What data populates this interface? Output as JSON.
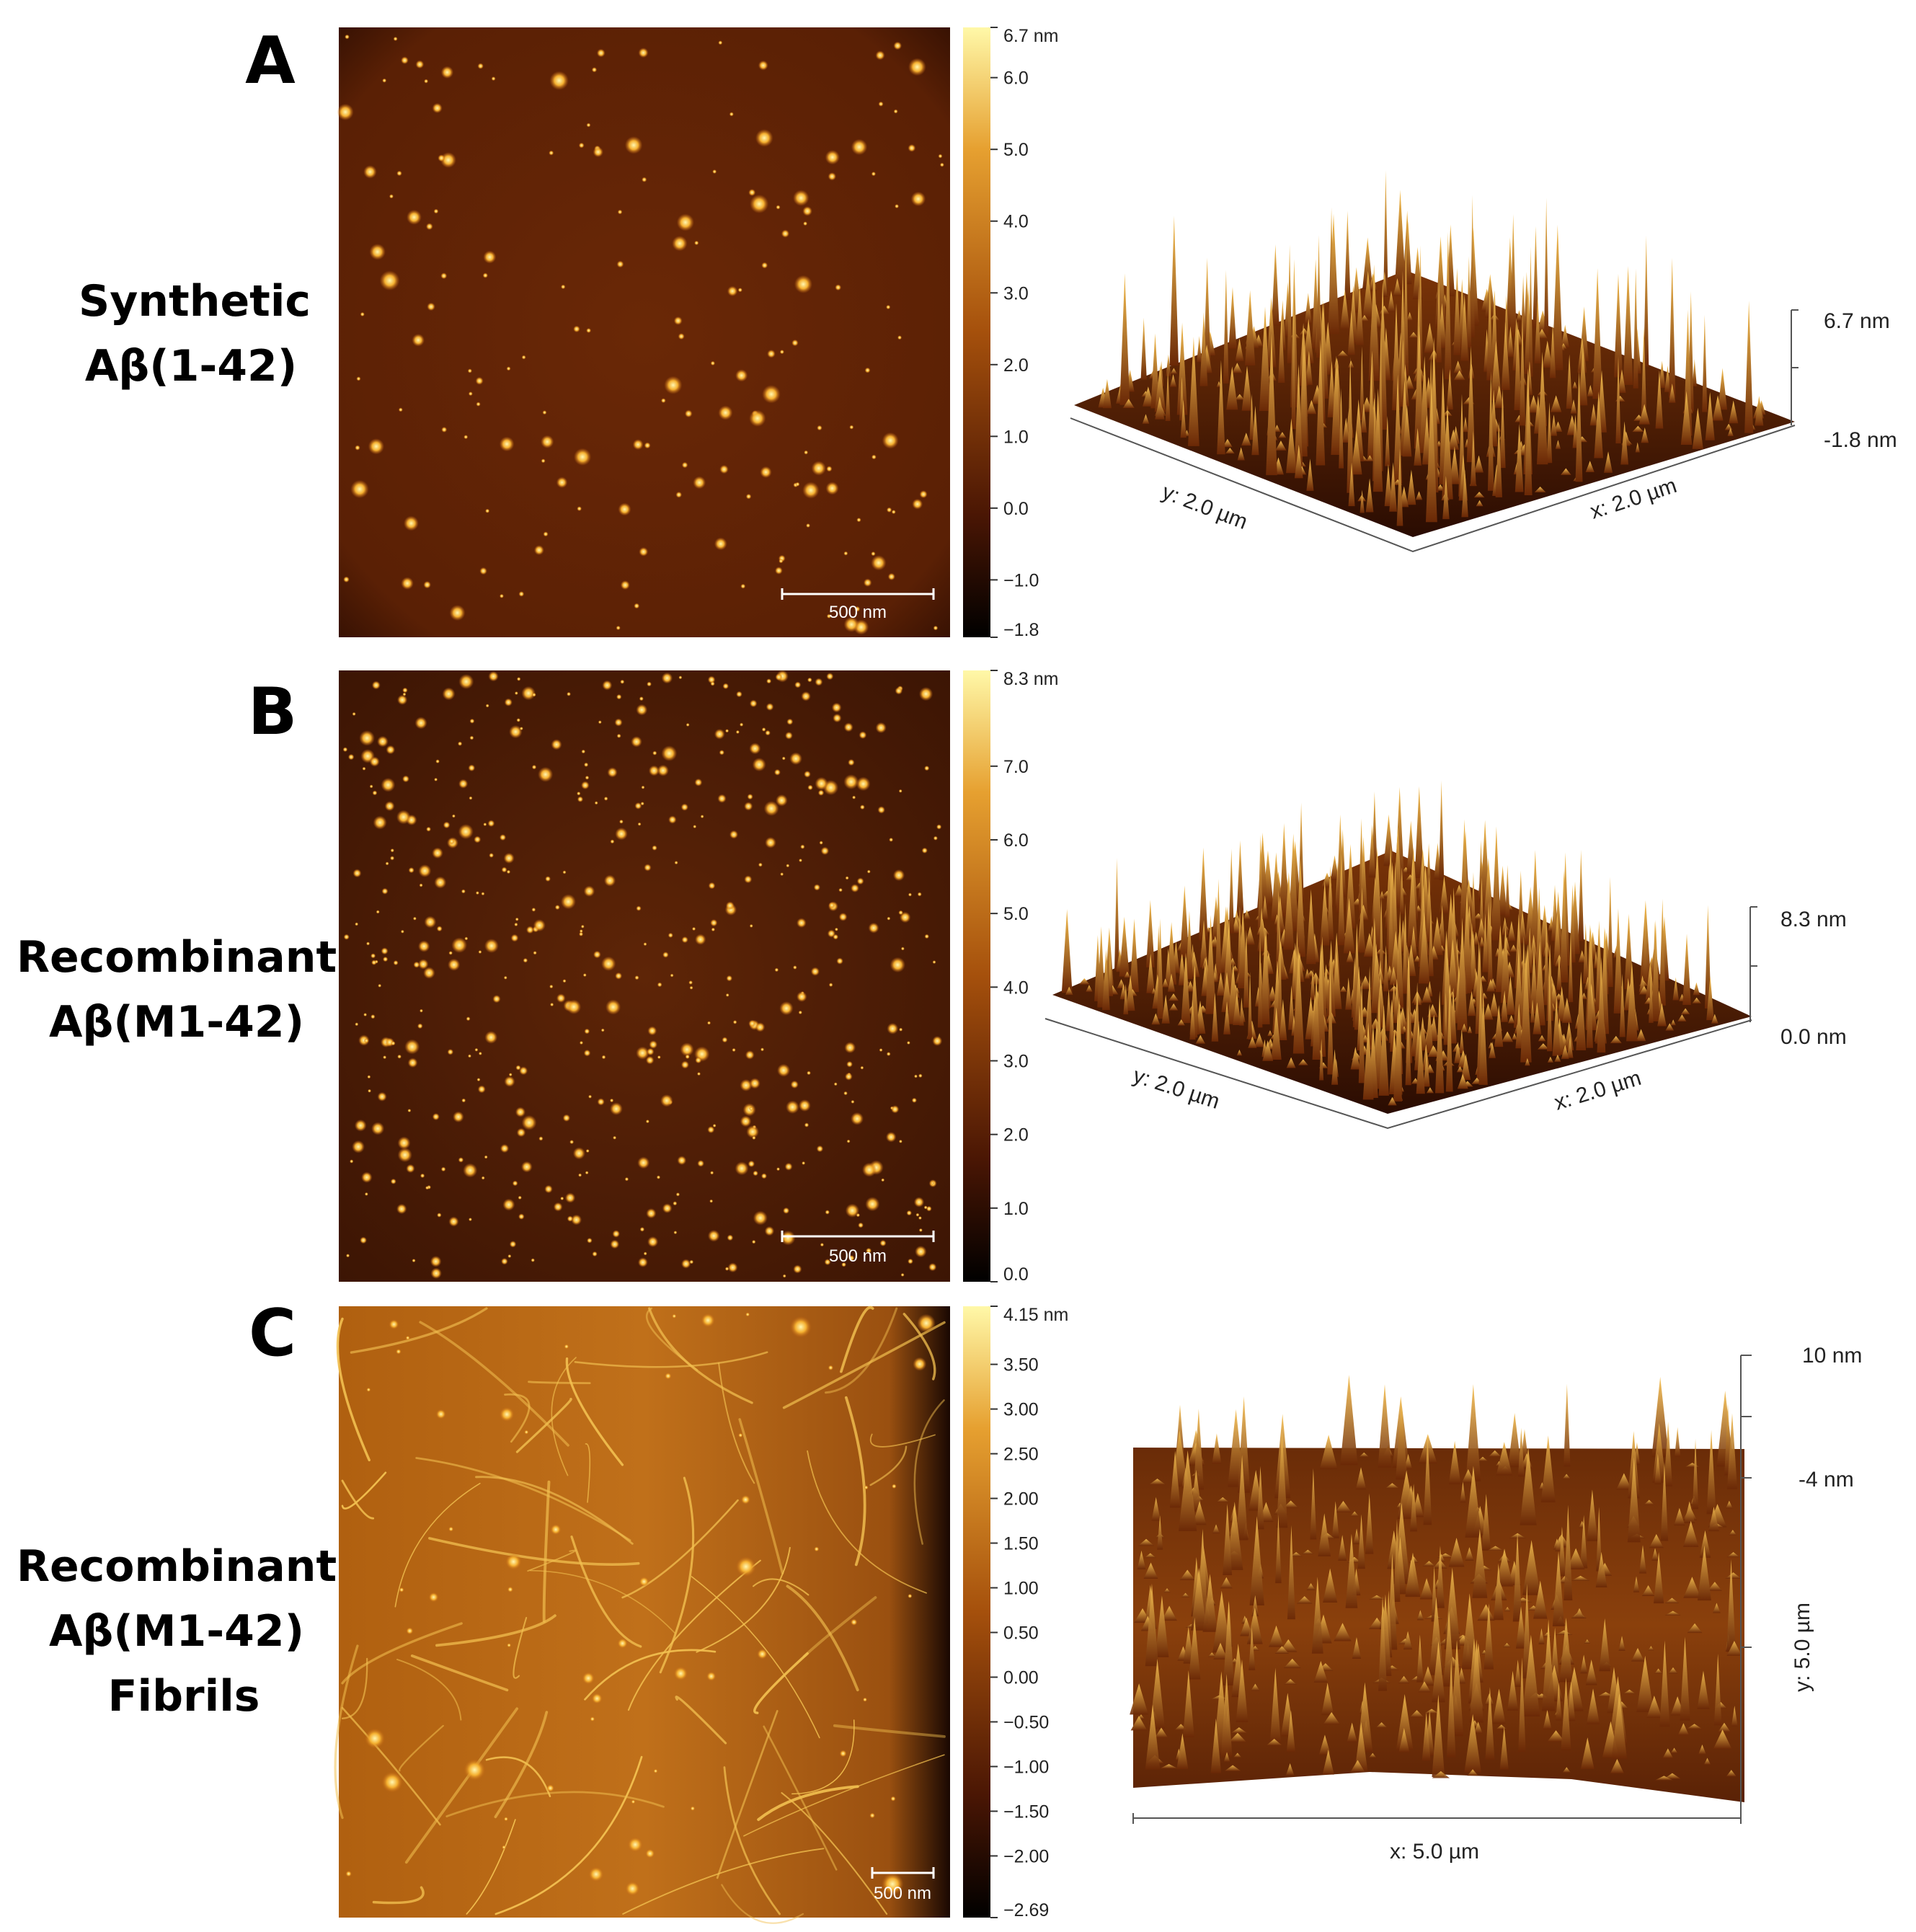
{
  "panels": [
    {
      "letter": "A",
      "label_lines": [
        "Synthetic",
        "Aβ(1-42)"
      ],
      "colorbar": {
        "ticks": [
          "6.7 nm",
          "6.0",
          "5.0",
          "4.0",
          "3.0",
          "2.0",
          "1.0",
          "0.0",
          "−1.0",
          "−1.8"
        ],
        "values": [
          6.7,
          6.0,
          5.0,
          4.0,
          3.0,
          2.0,
          1.0,
          0.0,
          -1.0,
          -1.8
        ],
        "range": [
          -1.8,
          6.7
        ]
      },
      "scale_bar": "500 nm",
      "view3d": {
        "z_labels": [
          "6.7 nm",
          "-1.8 nm"
        ],
        "y_label": "y: 2.0 µm",
        "x_label": "x: 2.0 µm"
      }
    },
    {
      "letter": "B",
      "label_lines": [
        "Recombinant",
        "Aβ(M1-42)"
      ],
      "colorbar": {
        "ticks": [
          "8.3 nm",
          "7.0",
          "6.0",
          "5.0",
          "4.0",
          "3.0",
          "2.0",
          "1.0",
          "0.0"
        ],
        "values": [
          8.3,
          7.0,
          6.0,
          5.0,
          4.0,
          3.0,
          2.0,
          1.0,
          0.0
        ],
        "range": [
          0.0,
          8.3
        ]
      },
      "scale_bar": "500 nm",
      "view3d": {
        "z_labels": [
          "8.3 nm",
          "0.0 nm"
        ],
        "y_label": "y: 2.0 µm",
        "x_label": "x: 2.0 µm"
      }
    },
    {
      "letter": "C",
      "label_lines": [
        "Recombinant",
        "Aβ(M1-42)",
        "Fibrils"
      ],
      "colorbar": {
        "ticks": [
          "4.15 nm",
          "3.50",
          "3.00",
          "2.50",
          "2.00",
          "1.50",
          "1.00",
          "0.50",
          "0.00",
          "−0.50",
          "−1.00",
          "−1.50",
          "−2.00",
          "−2.69"
        ],
        "values": [
          4.15,
          3.5,
          3.0,
          2.5,
          2.0,
          1.5,
          1.0,
          0.5,
          0.0,
          -0.5,
          -1.0,
          -1.5,
          -2.0,
          -2.69
        ],
        "range": [
          -2.69,
          4.15
        ]
      },
      "scale_bar": "500 nm",
      "view3d": {
        "z_labels": [
          "10 nm",
          "-4 nm"
        ],
        "y_label": "y: 5.0 µm",
        "x_label": "x: 5.0 µm"
      }
    }
  ],
  "colors": {
    "afm_dark": "#3a1203",
    "afm_mid": "#8a3a0a",
    "afm_bright": "#f0b030",
    "afm_highlight": "#fff3a0",
    "fibril_bg": "#a85a10"
  }
}
